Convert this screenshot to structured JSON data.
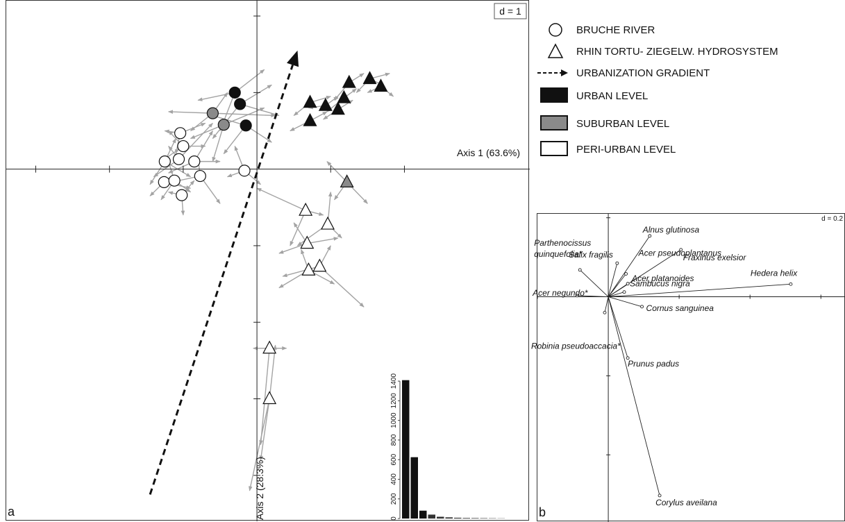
{
  "chart_data": [
    {
      "type": "scatter",
      "panel_label": "a",
      "d_label": "d = 1",
      "xlabel": "Axis 1 (63.6%)",
      "ylabel": "Axis 2 (28.3%)",
      "xlim": [
        -3.4,
        3.7
      ],
      "ylim": [
        -4.6,
        2.2
      ],
      "x_ticks": [
        -3,
        -2,
        -1,
        0,
        1,
        2
      ],
      "y_ticks": [
        2,
        1,
        -1,
        -2,
        -3,
        -4
      ],
      "gradient_arrow": {
        "from": [
          -1.45,
          -4.25
        ],
        "to": [
          0.55,
          1.55
        ]
      },
      "series": [
        {
          "name": "BRUCHE RIVER",
          "marker": "circle",
          "points": [
            {
              "x": -0.3,
              "y": 1.0,
              "level": "urban",
              "arrows": [
                [
                  -0.5,
                  0.5
                ],
                [
                  0.1,
                  1.3
                ],
                [
                  -0.8,
                  0.9
                ]
              ]
            },
            {
              "x": -0.23,
              "y": 0.85,
              "level": "urban",
              "arrows": [
                [
                  -0.6,
                  0.4
                ],
                [
                  0.2,
                  1.1
                ],
                [
                  0.3,
                  0.7
                ]
              ]
            },
            {
              "x": -0.15,
              "y": 0.57,
              "level": "urban",
              "arrows": [
                [
                  -0.45,
                  0.2
                ],
                [
                  0.2,
                  0.35
                ],
                [
                  -0.6,
                  0.7
                ]
              ]
            },
            {
              "x": -0.6,
              "y": 0.73,
              "level": "suburban",
              "arrows": [
                [
                  -1.2,
                  0.75
                ],
                [
                  0.25,
                  0.7
                ],
                [
                  -0.9,
                  0.5
                ],
                [
                  -0.4,
                  1.0
                ]
              ]
            },
            {
              "x": -0.45,
              "y": 0.58,
              "level": "suburban",
              "arrows": [
                [
                  -0.9,
                  0.4
                ],
                [
                  0.1,
                  0.8
                ],
                [
                  -0.6,
                  0.1
                ]
              ]
            },
            {
              "x": -1.04,
              "y": 0.47,
              "level": "peri-urban",
              "arrows": [
                [
                  -1.25,
                  0.5
                ],
                [
                  -0.7,
                  0.6
                ],
                [
                  -1.1,
                  0.2
                ]
              ]
            },
            {
              "x": -1.0,
              "y": 0.3,
              "level": "peri-urban",
              "arrows": [
                [
                  -1.3,
                  0.1
                ],
                [
                  -0.7,
                  0.3
                ],
                [
                  -1.2,
                  0.5
                ]
              ]
            },
            {
              "x": -1.25,
              "y": 0.1,
              "level": "peri-urban",
              "arrows": [
                [
                  -1.45,
                  -0.2
                ],
                [
                  -1.1,
                  0.4
                ],
                [
                  -0.9,
                  -0.1
                ]
              ]
            },
            {
              "x": -1.06,
              "y": 0.13,
              "level": "peri-urban",
              "arrows": [
                [
                  -1.4,
                  -0.1
                ],
                [
                  -0.6,
                  0.6
                ],
                [
                  -1.2,
                  0.3
                ]
              ]
            },
            {
              "x": -0.85,
              "y": 0.1,
              "level": "peri-urban",
              "arrows": [
                [
                  -1.2,
                  -0.05
                ],
                [
                  -0.5,
                  0.1
                ],
                [
                  -0.6,
                  0.5
                ]
              ]
            },
            {
              "x": -0.77,
              "y": -0.09,
              "level": "peri-urban",
              "arrows": [
                [
                  -1.3,
                  -0.2
                ],
                [
                  -0.5,
                  -0.45
                ],
                [
                  -0.8,
                  0.15
                ]
              ]
            },
            {
              "x": -0.17,
              "y": -0.02,
              "level": "peri-urban",
              "arrows": [
                [
                  -0.4,
                  -0.1
                ],
                [
                  0.05,
                  -0.2
                ],
                [
                  -0.3,
                  0.3
                ]
              ]
            },
            {
              "x": -1.26,
              "y": -0.17,
              "level": "peri-urban",
              "arrows": [
                [
                  -1.45,
                  -0.35
                ],
                [
                  -1.2,
                  -0.2
                ],
                [
                  -0.9,
                  -0.25
                ]
              ]
            },
            {
              "x": -1.12,
              "y": -0.15,
              "level": "peri-urban",
              "arrows": [
                [
                  -1.3,
                  -0.4
                ],
                [
                  -0.9,
                  -0.3
                ],
                [
                  -1.2,
                  0.1
                ]
              ]
            },
            {
              "x": -1.02,
              "y": -0.34,
              "level": "peri-urban",
              "arrows": [
                [
                  -1.0,
                  -0.6
                ],
                [
                  -1.2,
                  -0.3
                ],
                [
                  -0.85,
                  -0.15
                ]
              ]
            }
          ]
        },
        {
          "name": "RHIN TORTU- ZIEGELW. HYDROSYSTEM",
          "marker": "triangle",
          "points": [
            {
              "x": 1.25,
              "y": 1.13,
              "level": "urban",
              "arrows": [
                [
                  1.05,
                  0.9
                ],
                [
                  1.45,
                  1.25
                ]
              ]
            },
            {
              "x": 1.53,
              "y": 1.18,
              "level": "urban",
              "arrows": [
                [
                  1.35,
                  1.0
                ],
                [
                  1.8,
                  1.25
                ],
                [
                  1.7,
                  1.1
                ]
              ]
            },
            {
              "x": 1.68,
              "y": 1.08,
              "level": "urban",
              "arrows": [
                [
                  1.5,
                  1.0
                ],
                [
                  1.85,
                  0.95
                ]
              ]
            },
            {
              "x": 1.18,
              "y": 0.93,
              "level": "urban",
              "arrows": [
                [
                  0.95,
                  0.75
                ],
                [
                  1.35,
                  1.05
                ]
              ]
            },
            {
              "x": 0.72,
              "y": 0.87,
              "level": "urban",
              "arrows": [
                [
                  0.5,
                  0.7
                ],
                [
                  1.0,
                  0.95
                ]
              ]
            },
            {
              "x": 0.93,
              "y": 0.83,
              "level": "urban",
              "arrows": [
                [
                  0.7,
                  0.8
                ],
                [
                  1.1,
                  0.95
                ]
              ]
            },
            {
              "x": 1.1,
              "y": 0.78,
              "level": "urban",
              "arrows": [
                [
                  0.9,
                  0.65
                ],
                [
                  1.3,
                  0.9
                ]
              ]
            },
            {
              "x": 0.72,
              "y": 0.63,
              "level": "urban",
              "arrows": [
                [
                  0.45,
                  0.5
                ],
                [
                  0.95,
                  0.75
                ]
              ]
            },
            {
              "x": 1.22,
              "y": -0.17,
              "level": "suburban",
              "arrows": [
                [
                  0.95,
                  0.1
                ],
                [
                  1.5,
                  -0.45
                ],
                [
                  1.05,
                  -0.4
                ]
              ]
            },
            {
              "x": 0.66,
              "y": -0.54,
              "level": "peri-urban",
              "arrows": [
                [
                  0.0,
                  -0.25
                ],
                [
                  0.9,
                  -0.6
                ],
                [
                  0.45,
                  -1.0
                ]
              ]
            },
            {
              "x": 0.96,
              "y": -0.72,
              "level": "peri-urban",
              "arrows": [
                [
                  0.55,
                  -1.0
                ],
                [
                  1.0,
                  -0.3
                ],
                [
                  1.15,
                  -0.9
                ]
              ]
            },
            {
              "x": 0.68,
              "y": -0.97,
              "level": "peri-urban",
              "arrows": [
                [
                  0.3,
                  -1.1
                ],
                [
                  1.1,
                  -0.9
                ],
                [
                  0.5,
                  -0.7
                ]
              ]
            },
            {
              "x": 0.85,
              "y": -1.27,
              "level": "peri-urban",
              "arrows": [
                [
                  0.35,
                  -1.4
                ],
                [
                  1.0,
                  -1.0
                ],
                [
                  1.45,
                  -1.8
                ]
              ]
            },
            {
              "x": 0.7,
              "y": -1.32,
              "level": "peri-urban",
              "arrows": [
                [
                  0.3,
                  -1.55
                ],
                [
                  1.05,
                  -1.5
                ],
                [
                  0.6,
                  -1.05
                ]
              ]
            },
            {
              "x": 0.17,
              "y": -2.34,
              "level": "peri-urban",
              "arrows": [
                [
                  0.4,
                  -2.34
                ],
                [
                  -0.05,
                  -2.34
                ],
                [
                  0.05,
                  -3.6
                ]
              ]
            },
            {
              "x": 0.17,
              "y": -3.0,
              "level": "peri-urban",
              "arrows": [
                [
                  0.25,
                  -2.3
                ],
                [
                  -0.1,
                  -4.2
                ],
                [
                  0.05,
                  -3.8
                ]
              ]
            }
          ]
        }
      ],
      "inset": {
        "type": "bar",
        "y_ticks": [
          "0",
          "200",
          "400",
          "600",
          "800",
          "1000",
          "1200",
          "1400"
        ],
        "ylim": [
          0,
          1450
        ],
        "values": [
          1410,
          625,
          80,
          40,
          18,
          12,
          8,
          6,
          5,
          4,
          3,
          2
        ]
      }
    },
    {
      "type": "scatter",
      "panel_label": "b",
      "d_label": "d = 0.2",
      "xlim": [
        -0.2,
        0.67
      ],
      "ylim": [
        -0.57,
        0.21
      ],
      "x_ticks": [
        -0.2,
        0.2,
        0.4,
        0.6
      ],
      "y_ticks": [
        0.2,
        -0.2,
        -0.4
      ],
      "points": [
        {
          "name": "Salix fragilis",
          "x": 0.025,
          "y": 0.085
        },
        {
          "name": "Alnus glutinosa",
          "x": 0.117,
          "y": 0.154
        },
        {
          "name": "Acer pseudoplantanus",
          "x": 0.05,
          "y": 0.058
        },
        {
          "name": "Fraxinus exelsior",
          "x": 0.205,
          "y": 0.119
        },
        {
          "name": "Parthenocissus quinquefolia*",
          "x": -0.08,
          "y": 0.068
        },
        {
          "name": "Acer platanoides",
          "x": 0.055,
          "y": 0.033
        },
        {
          "name": "Hedera helix",
          "x": 0.515,
          "y": 0.032
        },
        {
          "name": "Acer negundo*",
          "x": -0.088,
          "y": 0.003
        },
        {
          "name": "Sambucus nigra",
          "x": 0.045,
          "y": 0.012
        },
        {
          "name": "Cornus sanguinea",
          "x": 0.095,
          "y": -0.025
        },
        {
          "name": "Robinia pseudoaccacia*",
          "x": -0.01,
          "y": -0.04
        },
        {
          "name": "Prunus padus",
          "x": 0.055,
          "y": -0.155
        },
        {
          "name": "Corylus aveilana",
          "x": 0.145,
          "y": -0.503
        }
      ]
    }
  ],
  "legend": {
    "circle_label": "BRUCHE RIVER",
    "triangle_label": "RHIN TORTU- ZIEGELW. HYDROSYSTEM",
    "gradient_label": "URBANIZATION GRADIENT",
    "urban_label": "URBAN LEVEL",
    "suburban_label": "SUBURBAN LEVEL",
    "periurban_label": "PERI-URBAN LEVEL"
  },
  "colors": {
    "urban": "#111111",
    "suburban": "#8a8a8a",
    "peri-urban": "#ffffff",
    "arrows": "#a3a3a3",
    "axis": "#222222"
  }
}
